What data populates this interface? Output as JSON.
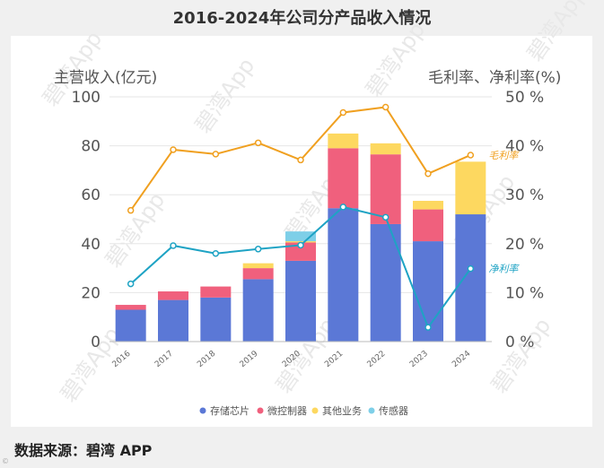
{
  "title": "2016-2024年公司分产品收入情况",
  "source": "数据来源：碧湾 APP",
  "watermark": "碧湾App",
  "chart_data": {
    "type": "bar",
    "stacked": true,
    "categories": [
      "2016",
      "2017",
      "2018",
      "2019",
      "2020",
      "2021",
      "2022",
      "2023",
      "2024"
    ],
    "series": [
      {
        "name": "存储芯片",
        "color": "#5b78d6",
        "values": [
          13,
          17,
          18,
          25.5,
          33,
          54.5,
          48,
          41,
          52
        ]
      },
      {
        "name": "微控制器",
        "color": "#f0607d",
        "values": [
          2,
          3.5,
          4.5,
          4.5,
          7.5,
          24.5,
          28.5,
          13,
          0
        ]
      },
      {
        "name": "其他业务",
        "color": "#fdd860",
        "values": [
          0,
          0,
          0,
          2,
          0.5,
          6,
          4.5,
          3.5,
          21.5
        ]
      },
      {
        "name": "传感器",
        "color": "#7ecfe8",
        "values": [
          0,
          0,
          0,
          0,
          4,
          0,
          0,
          0,
          0
        ]
      }
    ],
    "lines": [
      {
        "name": "毛利率",
        "color": "#f0a020",
        "values": [
          26.8,
          39.2,
          38.3,
          40.6,
          37.1,
          46.8,
          47.9,
          34.3,
          38.1
        ]
      },
      {
        "name": "净利率",
        "color": "#1ea3c4",
        "values": [
          11.8,
          19.6,
          18.0,
          18.9,
          19.7,
          27.5,
          25.4,
          2.9,
          14.9
        ]
      }
    ],
    "ylabel_left": "主营收入(亿元)",
    "ylabel_right": "毛利率、净利率(%)",
    "ylim_left": [
      0,
      100
    ],
    "ylim_right": [
      0,
      50
    ],
    "yticks_left": [
      "0",
      "20",
      "40",
      "60",
      "80",
      "100"
    ],
    "yticks_right": [
      "0 %",
      "10 %",
      "20 %",
      "30 %",
      "40 %",
      "50 %"
    ]
  }
}
